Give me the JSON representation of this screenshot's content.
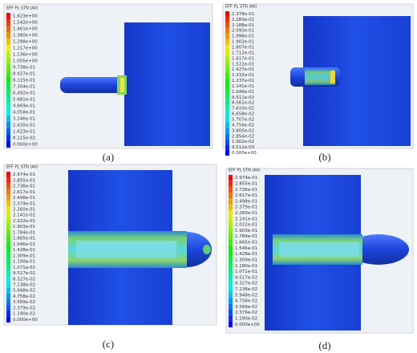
{
  "panels": [
    {
      "caption": "(a)",
      "legend_title": "EFF PL STN (All)",
      "legend_labels": [
        "1.623e+00",
        "1.542e+00",
        "1.461e+00",
        "1.380e+00",
        "1.298e+00",
        "1.217e+00",
        "1.136e+00",
        "1.055e+00",
        "9.738e-01",
        "8.927e-01",
        "8.115e-01",
        "7.304e-01",
        "6.492e-01",
        "5.681e-01",
        "4.869e-01",
        "4.058e-01",
        "3.246e-01",
        "2.435e-01",
        "1.623e-01",
        "8.115e-02",
        "0.000e+00"
      ]
    },
    {
      "caption": "(b)",
      "legend_title": "EFF PL STN (All)",
      "legend_labels": [
        "2.378e-01",
        "2.283e-01",
        "2.188e-01",
        "2.093e-01",
        "1.998e-01",
        "1.902e-01",
        "1.807e-01",
        "1.712e-01",
        "1.617e-01",
        "1.522e-01",
        "1.427e-01",
        "1.332e-01",
        "1.237e-01",
        "1.141e-01",
        "1.046e-01",
        "9.512e-02",
        "8.561e-02",
        "7.610e-02",
        "6.658e-02",
        "5.707e-02",
        "4.756e-02",
        "3.805e-02",
        "2.854e-02",
        "1.902e-02",
        "9.512e-03",
        "0.000e+00"
      ]
    },
    {
      "caption": "(c)",
      "legend_title": "EFF PL STN (All)",
      "legend_labels": [
        "2.974e-01",
        "2.855e-01",
        "2.736e-01",
        "2.617e-01",
        "2.498e-01",
        "2.379e-01",
        "2.260e-01",
        "2.141e-01",
        "2.022e-01",
        "1.903e-01",
        "1.784e-01",
        "1.665e-01",
        "1.546e-01",
        "1.428e-01",
        "1.309e-01",
        "1.190e-01",
        "1.071e-01",
        "9.517e-02",
        "8.327e-02",
        "7.138e-02",
        "5.948e-02",
        "4.758e-02",
        "3.569e-02",
        "2.379e-02",
        "1.190e-02",
        "0.000e+00"
      ]
    },
    {
      "caption": "(d)",
      "legend_title": "EFF PL STN (All)",
      "legend_labels": [
        "2.974e-01",
        "2.855e-01",
        "2.736e-01",
        "2.617e-01",
        "2.498e-01",
        "2.379e-01",
        "2.260e-01",
        "2.141e-01",
        "2.022e-01",
        "1.903e-01",
        "1.784e-01",
        "1.665e-01",
        "1.546e-01",
        "1.428e-01",
        "1.309e-01",
        "1.190e-01",
        "1.071e-01",
        "9.517e-02",
        "8.327e-02",
        "7.138e-02",
        "5.948e-02",
        "4.758e-02",
        "3.569e-02",
        "2.379e-02",
        "1.190e-02",
        "0.000e+00"
      ]
    }
  ]
}
